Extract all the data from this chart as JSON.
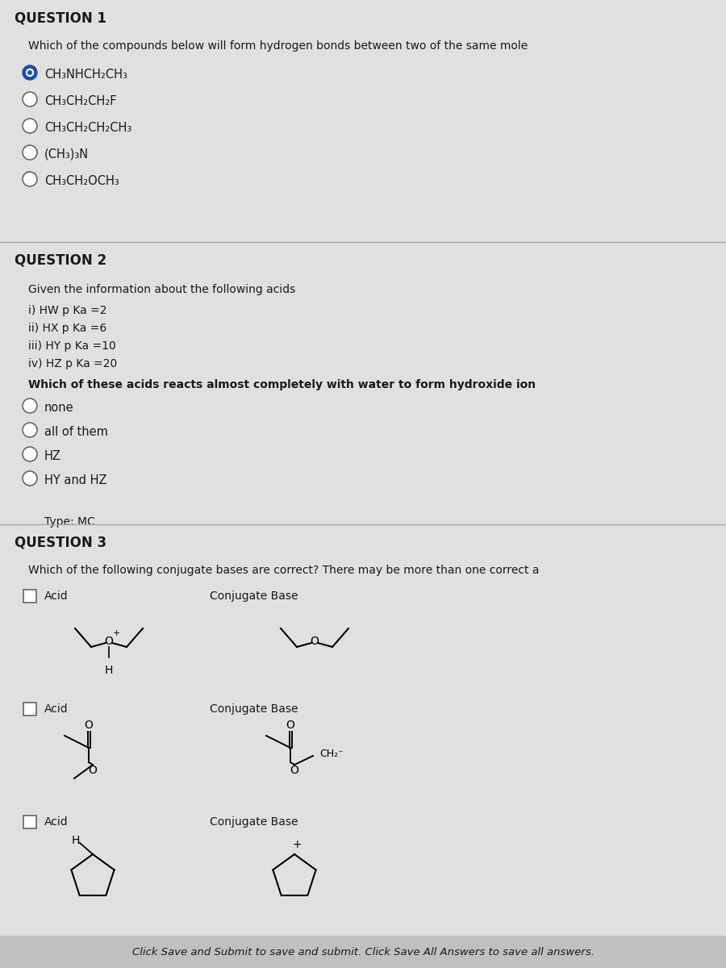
{
  "bg_color": "#d4d4d4",
  "section_bg": "#e2e2e2",
  "text_color": "#1a1a1a",
  "q1_header": "QUESTION 1",
  "q1_prompt": "Which of the compounds below will form hydrogen bonds between two of the same mole",
  "q1_options": [
    "CH₃NHCH₂CH₃",
    "CH₃CH₂CH₂F",
    "CH₃CH₂CH₂CH₃",
    "(CH₃)₃N",
    "CH₃CH₂OCH₃"
  ],
  "q1_selected": 0,
  "q2_header": "QUESTION 2",
  "q2_prompt": "Given the information about the following acids",
  "q2_acids": [
    "i) HW p Ka =2",
    "ii) HX p Ka =6",
    "iii) HY p Ka =10",
    "iv) HZ p Ka =20"
  ],
  "q2_question": "Which of these acids reacts almost completely with water to form hydroxide ion",
  "q2_options": [
    "none",
    "all of them",
    "HZ",
    "HY and HZ"
  ],
  "q2_type": "Type: MC",
  "q3_header": "QUESTION 3",
  "q3_prompt": "Which of the following conjugate bases are correct? There may be more than one correct a",
  "q3_col1": "Acid",
  "q3_col2": "Conjugate Base",
  "footer": "Click Save and Submit to save and submit. Click Save All Answers to save all answers.",
  "filled_radio_color": "#1e4db0",
  "radio_border": "#666666",
  "separator_color": "#aaaaaa"
}
